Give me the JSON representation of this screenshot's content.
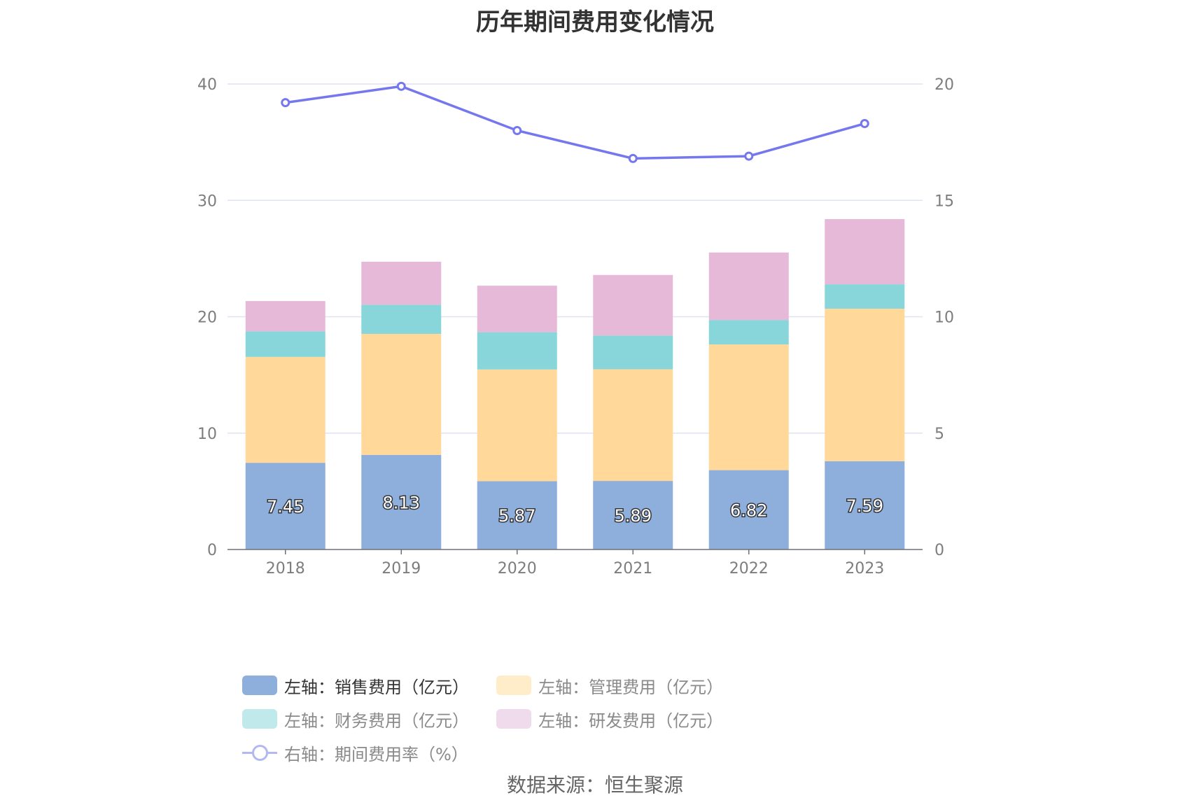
{
  "chart_data": {
    "type": "bar",
    "title": "历年期间费用变化情况",
    "categories": [
      "2018",
      "2019",
      "2020",
      "2021",
      "2022",
      "2023"
    ],
    "series": [
      {
        "name": "左轴：销售费用（亿元）",
        "values": [
          7.45,
          8.13,
          5.87,
          5.89,
          6.82,
          7.59
        ],
        "color": "#8eaedb",
        "axis": "left",
        "stack": "total",
        "show_labels": true
      },
      {
        "name": "左轴：管理费用（亿元）",
        "values": [
          9.1,
          10.4,
          9.6,
          9.6,
          10.8,
          13.1
        ],
        "color": "#ffd89a",
        "axis": "left",
        "stack": "total"
      },
      {
        "name": "左轴：财务费用（亿元）",
        "values": [
          2.2,
          2.5,
          3.2,
          2.9,
          2.1,
          2.1
        ],
        "color": "#88d6d9",
        "axis": "left",
        "stack": "total"
      },
      {
        "name": "左轴：研发费用（亿元）",
        "values": [
          2.6,
          3.7,
          4.0,
          5.2,
          5.8,
          5.6
        ],
        "color": "#e7b9d9",
        "axis": "left",
        "stack": "total"
      },
      {
        "name": "右轴：期间费用率（%）",
        "values": [
          19.2,
          19.9,
          18.0,
          16.8,
          16.9,
          18.3
        ],
        "color": "#7577ee",
        "axis": "right",
        "type": "line"
      }
    ],
    "left_axis": {
      "ylim": [
        0,
        40
      ],
      "ticks": [
        "0",
        "10",
        "20",
        "30",
        "40"
      ]
    },
    "right_axis": {
      "ylim": [
        0,
        20
      ],
      "ticks": [
        "0",
        "5",
        "10",
        "15",
        "20"
      ]
    },
    "grid": true,
    "legend_position": "bottom"
  },
  "legend": {
    "items": [
      {
        "label": "左轴：销售费用（亿元）",
        "color": "#8eaedb"
      },
      {
        "label": "左轴：管理费用（亿元）",
        "color": "#ffecc9"
      },
      {
        "label": "左轴：财务费用（亿元）",
        "color": "#bfe9ea"
      },
      {
        "label": "左轴：研发费用（亿元）",
        "color": "#f0dbed"
      },
      {
        "label": "右轴：期间费用率（%）",
        "color": "#b3b8f3"
      }
    ]
  },
  "source": "数据来源：恒生聚源"
}
